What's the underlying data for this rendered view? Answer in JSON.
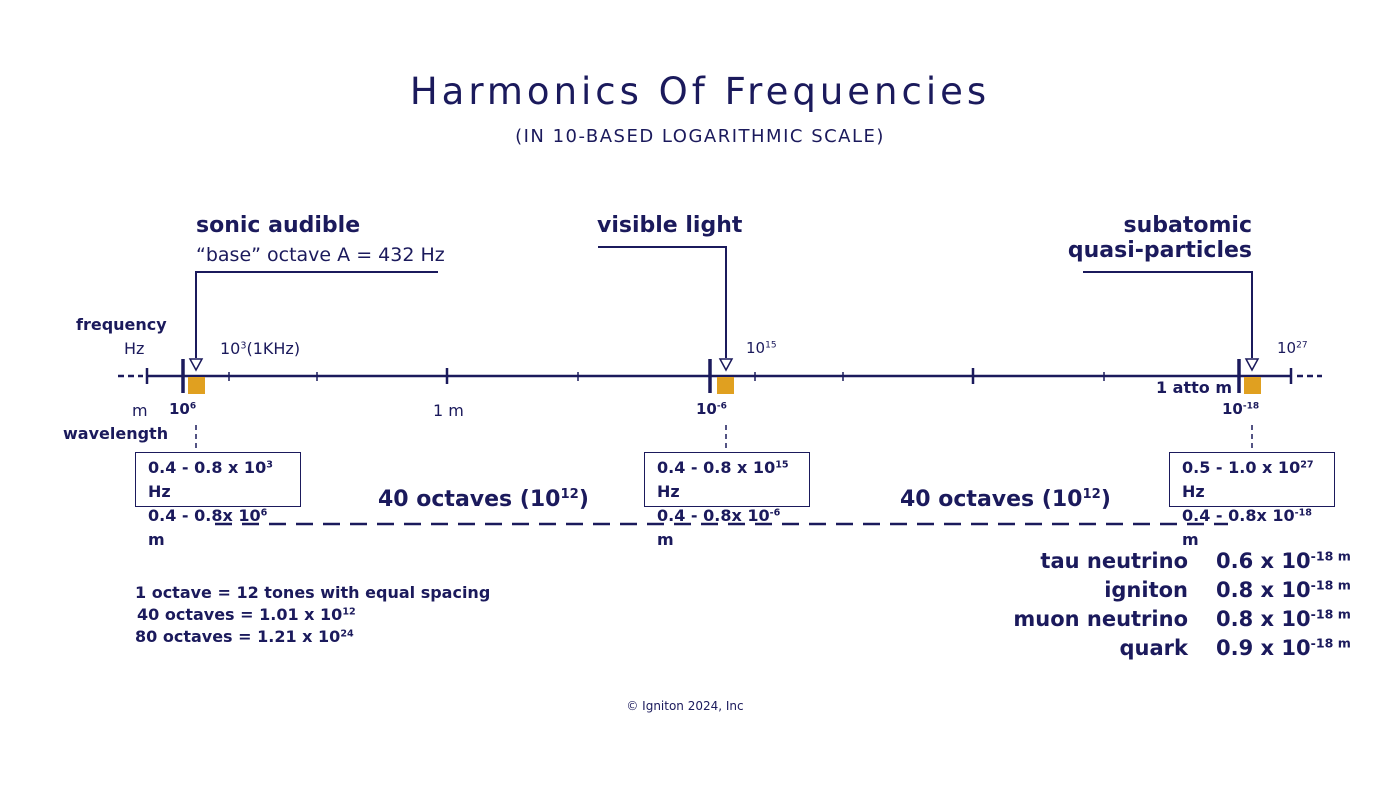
{
  "title": "Harmonics Of Frequencies",
  "subtitle": "(IN 10-BASED LOGARITHMIC SCALE)",
  "callouts": {
    "sonic": {
      "title": "sonic audible",
      "sub": "“base” octave A = 432 Hz"
    },
    "visible": {
      "title": "visible light"
    },
    "subatomic": {
      "title1": "subatomic",
      "title2": "quasi-particles"
    }
  },
  "axis": {
    "frequency_label": "frequency",
    "hz_unit": "Hz",
    "m_unit": "m",
    "wavelength_label": "wavelength",
    "f1_base": "10",
    "f1_sup": "3",
    "f1_suffix": "(1KHz)",
    "f2_base": "10",
    "f2_sup": "15",
    "f3_base": "10",
    "f3_sup": "27",
    "w1_base": "10",
    "w1_sup": "6",
    "w2": "1 m",
    "w3_base": "10",
    "w3_sup": "-6",
    "w4": "1 atto m",
    "w5_base": "10",
    "w5_sup": "-18"
  },
  "boxes": [
    {
      "l1": "0.4 - 0.8 x 10",
      "l1sup": "3",
      "l1u": " Hz",
      "l2": "0.4 - 0.8x 10",
      "l2sup": "6",
      "l2u": " m"
    },
    {
      "l1": "0.4 - 0.8 x 10",
      "l1sup": "15",
      "l1u": " Hz",
      "l2": "0.4 - 0.8x 10",
      "l2sup": "-6",
      "l2u": " m"
    },
    {
      "l1": "0.5 - 1.0 x 10",
      "l1sup": "27",
      "l1u": " Hz",
      "l2": "0.4 - 0.8x 10",
      "l2sup": "-18",
      "l2u": " m"
    }
  ],
  "octaves": [
    {
      "text": "40 octaves (10",
      "sup": "12",
      "end": ")"
    },
    {
      "text": "40 octaves (10",
      "sup": "12",
      "end": ")"
    }
  ],
  "notes": [
    {
      "text": "1 octave = 12 tones with equal spacing"
    },
    {
      "text": "40 octaves = 1.01 x 10",
      "sup": "12"
    },
    {
      "text": "80 octaves = 1.21 x 10",
      "sup": "24"
    }
  ],
  "particles": [
    {
      "name": "tau neutrino",
      "val": "0.6 x 10",
      "sup": "-18 m"
    },
    {
      "name": "igniton",
      "val": "0.8 x 10",
      "sup": "-18 m"
    },
    {
      "name": "muon neutrino",
      "val": "0.8 x 10",
      "sup": "-18 m"
    },
    {
      "name": "quark",
      "val": "0.9 x 10",
      "sup": "-18 m"
    }
  ],
  "footer": "© Igniton 2024, Inc",
  "colors": {
    "navy": "#1b1a5c",
    "band": "#e0a020"
  }
}
